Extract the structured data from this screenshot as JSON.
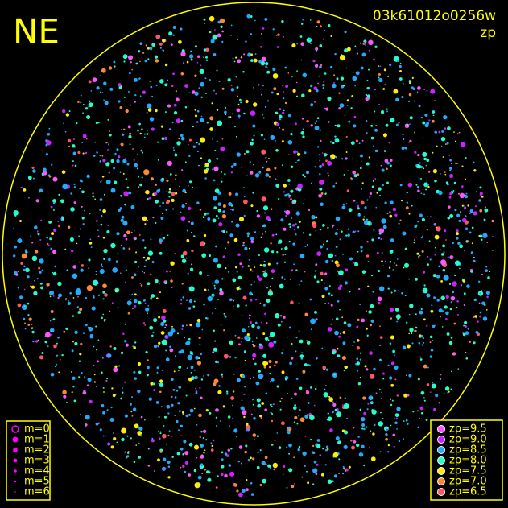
{
  "corner_label": "NE",
  "image_id": "03k61012o0256w",
  "mode": "zp",
  "magnitude_legend": [
    "m=0",
    "m=1",
    "m=2",
    "m=3",
    "m=4",
    "m=5",
    "m=6"
  ],
  "magnitude_legend_color": "#ff00ff",
  "zeropoint_legend": [
    {
      "label": "zp=9.5",
      "color": "#ff55ff"
    },
    {
      "label": "zp=9.0",
      "color": "#cc22ff"
    },
    {
      "label": "zp=8.5",
      "color": "#22aaff"
    },
    {
      "label": "zp=8.0",
      "color": "#22ffcc"
    },
    {
      "label": "zp=7.5",
      "color": "#ffee00"
    },
    {
      "label": "zp=7.0",
      "color": "#ff8833"
    },
    {
      "label": "zp=6.5",
      "color": "#ff5566"
    }
  ],
  "frame_color": "#ffff00"
}
